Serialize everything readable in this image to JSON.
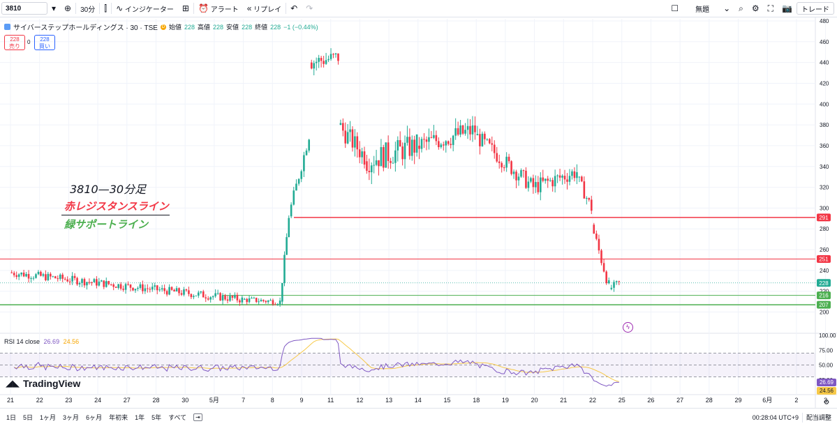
{
  "toolbar": {
    "symbol": "3810",
    "interval": "30分",
    "indicators_label": "インジケーター",
    "alert_label": "アラート",
    "replay_label": "リプレイ",
    "layout_name": "無題",
    "trade_label": "トレード"
  },
  "legend": {
    "title": "サイバーステップホールディングス · 30 · TSE",
    "badge": "D",
    "open_label": "始値",
    "open": "228",
    "high_label": "高値",
    "high": "228",
    "low_label": "安値",
    "low": "228",
    "close_label": "終値",
    "close": "228",
    "change": "−1 (−0.44%)"
  },
  "trade": {
    "sell_price": "228",
    "sell_label": "売り",
    "spread": "0",
    "buy_price": "228",
    "buy_label": "買い"
  },
  "annotations": {
    "title": "3810—30分足",
    "red_line": "赤レジスタンスライン",
    "green_line": "緑サポートライン"
  },
  "price_axis": {
    "ticks": [
      "480",
      "460",
      "440",
      "420",
      "400",
      "380",
      "360",
      "340",
      "320",
      "300",
      "280",
      "260",
      "240",
      "220",
      "200"
    ],
    "labels": [
      {
        "value": "291",
        "color": "#f23645"
      },
      {
        "value": "251",
        "color": "#f23645"
      },
      {
        "value": "228",
        "color": "#22ab94"
      },
      {
        "value": "216",
        "color": "#4caf50"
      },
      {
        "value": "207",
        "color": "#4caf50"
      }
    ]
  },
  "rsi": {
    "label": "RSI 14 close",
    "value": "26.69",
    "ma_value": "24.56",
    "ticks": [
      "100.00",
      "75.00",
      "50.00",
      "25.00"
    ],
    "value_label": "26.69",
    "ma_label": "24.56"
  },
  "time_axis": [
    "21",
    "22",
    "23",
    "24",
    "27",
    "28",
    "30",
    "5月",
    "7",
    "8",
    "9",
    "11",
    "12",
    "13",
    "14",
    "15",
    "18",
    "19",
    "20",
    "21",
    "22",
    "25",
    "26",
    "27",
    "28",
    "29",
    "6月",
    "2",
    "3"
  ],
  "watermark": "TradingView",
  "ranges": [
    "1日",
    "5日",
    "1ヶ月",
    "3ヶ月",
    "6ヶ月",
    "年初来",
    "1年",
    "5年",
    "すべて"
  ],
  "status": {
    "time": "00:28:04 UTC+9",
    "adjust": "配当調整"
  },
  "colors": {
    "up": "#22ab94",
    "down": "#f23645",
    "resistance": "#f23645",
    "support": "#4caf50",
    "rsi": "#7e57c2",
    "rsi_ma": "#f7c948"
  },
  "chart_data": {
    "type": "candlestick",
    "title": "サイバーステップホールディングス · 30 · TSE",
    "ylim": [
      195,
      482
    ],
    "y_ticks": [
      480,
      460,
      440,
      420,
      400,
      380,
      360,
      340,
      320,
      300,
      280,
      260,
      240,
      220,
      200
    ],
    "x_labels": [
      "21",
      "22",
      "23",
      "24",
      "27",
      "28",
      "30",
      "5月",
      "7",
      "8",
      "9",
      "11",
      "12",
      "13",
      "14",
      "15",
      "18",
      "19",
      "20",
      "21",
      "22",
      "25",
      "26",
      "27",
      "28",
      "29",
      "6月",
      "2",
      "3"
    ],
    "horizontal_lines": [
      {
        "value": 291,
        "color": "red",
        "kind": "resistance"
      },
      {
        "value": 251,
        "color": "red",
        "kind": "resistance"
      },
      {
        "value": 216,
        "color": "green",
        "kind": "support"
      },
      {
        "value": 207,
        "color": "green",
        "kind": "support"
      }
    ],
    "current_price": 228,
    "segments": [
      {
        "from_day": 0,
        "to_day": 8,
        "start": 238,
        "end": 212,
        "noise": 4
      },
      {
        "from_day": 8,
        "to_day": 9.3,
        "start": 212,
        "end": 210,
        "noise": 3
      },
      {
        "from_day": 9.3,
        "to_day": 9.6,
        "start": 210,
        "end": 292,
        "noise": 4
      },
      {
        "from_day": 9.6,
        "to_day": 10.3,
        "start": 292,
        "end": 370,
        "noise": 6
      },
      {
        "from_day": 10.3,
        "to_day": 11.3,
        "start": 440,
        "end": 445,
        "noise": 8
      },
      {
        "from_day": 11.3,
        "to_day": 12.2,
        "start": 380,
        "end": 350,
        "noise": 10
      },
      {
        "from_day": 12.2,
        "to_day": 14,
        "start": 345,
        "end": 360,
        "noise": 12
      },
      {
        "from_day": 14,
        "to_day": 16,
        "start": 360,
        "end": 375,
        "noise": 10
      },
      {
        "from_day": 16,
        "to_day": 18,
        "start": 370,
        "end": 320,
        "noise": 8
      },
      {
        "from_day": 18,
        "to_day": 19.5,
        "start": 320,
        "end": 335,
        "noise": 8
      },
      {
        "from_day": 19.5,
        "to_day": 20,
        "start": 330,
        "end": 300,
        "noise": 6
      },
      {
        "from_day": 20,
        "to_day": 20.6,
        "start": 284,
        "end": 225,
        "noise": 6
      },
      {
        "from_day": 20.6,
        "to_day": 20.95,
        "start": 222,
        "end": 228,
        "noise": 4
      }
    ],
    "rsi": {
      "last": 26.69,
      "ma_last": 24.56,
      "ylim": [
        0,
        100
      ]
    }
  }
}
